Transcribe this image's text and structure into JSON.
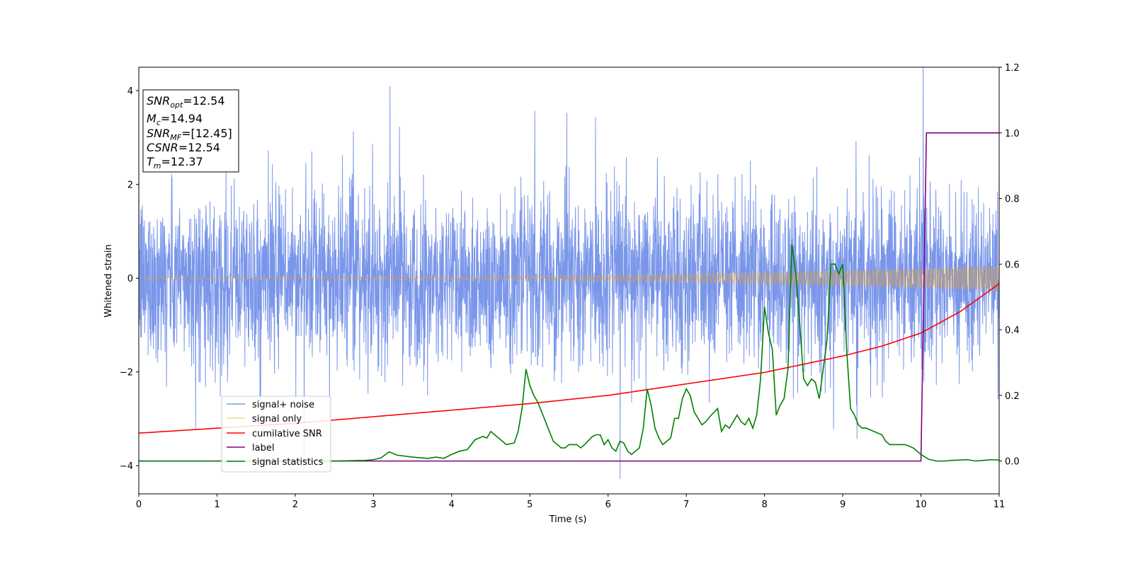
{
  "chart_data": {
    "type": "line",
    "xlabel": "Time (s)",
    "ylabel": "Whitened strain",
    "xlim": [
      0,
      11
    ],
    "ylim_left": [
      -4.6,
      4.5
    ],
    "ylim_right": [
      -0.1,
      1.2
    ],
    "x_ticks": [
      "0",
      "1",
      "2",
      "3",
      "4",
      "5",
      "6",
      "7",
      "8",
      "9",
      "10",
      "11"
    ],
    "y_left_ticks": [
      "−4",
      "−2",
      "0",
      "2",
      "4"
    ],
    "y_right_ticks": [
      "0.0",
      "0.2",
      "0.4",
      "0.6",
      "0.8",
      "1.0",
      "1.2"
    ],
    "grid": false,
    "legend_position": "lower-left",
    "info_box": {
      "snr_opt": {
        "main": "SNR",
        "sub": "opt",
        "rest": "=12.54"
      },
      "mc": {
        "main": "M",
        "sub": "c",
        "rest": "=14.94"
      },
      "snr_mf": {
        "main": "SNR",
        "sub": "MF",
        "rest": "=[12.45]"
      },
      "csnr": {
        "main": "CSNR",
        "rest": "=12.54"
      },
      "tm": {
        "main": "T",
        "sub": "m",
        "rest": "=12.37"
      }
    },
    "series": [
      {
        "name": "signal+ noise",
        "axis": "left",
        "color": "#4169e1",
        "description_hidden": false,
        "noise_sigma": 0.9,
        "x_range": [
          0,
          11
        ]
      },
      {
        "name": "signal only",
        "axis": "left",
        "color": "#ffa500",
        "amplitude_start": 0.03,
        "amplitude_end": 0.27,
        "x_range": [
          0,
          11
        ]
      },
      {
        "name": "cumilative SNR",
        "axis": "right",
        "color": "#ff0000",
        "x": [
          0,
          1,
          2,
          3,
          4,
          5,
          6,
          7,
          8,
          9,
          9.5,
          10,
          10.5,
          11
        ],
        "y": [
          0.085,
          0.1,
          0.115,
          0.135,
          0.155,
          0.175,
          0.2,
          0.235,
          0.27,
          0.32,
          0.35,
          0.39,
          0.455,
          0.54
        ]
      },
      {
        "name": "label",
        "axis": "right",
        "color": "#800080",
        "x": [
          0,
          10.0,
          10.07,
          11
        ],
        "y": [
          0,
          0,
          1,
          1
        ]
      },
      {
        "name": "signal statistics",
        "axis": "right",
        "color": "#008000",
        "x": [
          0,
          1,
          2,
          2.5,
          2.9,
          3.0,
          3.1,
          3.2,
          3.3,
          3.5,
          3.7,
          3.8,
          3.9,
          4.0,
          4.1,
          4.2,
          4.3,
          4.4,
          4.45,
          4.5,
          4.6,
          4.7,
          4.8,
          4.85,
          4.9,
          4.95,
          5.0,
          5.05,
          5.1,
          5.2,
          5.3,
          5.4,
          5.45,
          5.5,
          5.6,
          5.65,
          5.7,
          5.8,
          5.85,
          5.9,
          5.95,
          6.0,
          6.05,
          6.1,
          6.15,
          6.2,
          6.25,
          6.3,
          6.4,
          6.45,
          6.5,
          6.55,
          6.6,
          6.65,
          6.7,
          6.8,
          6.85,
          6.9,
          6.95,
          7.0,
          7.05,
          7.1,
          7.2,
          7.25,
          7.3,
          7.4,
          7.45,
          7.5,
          7.55,
          7.6,
          7.65,
          7.7,
          7.75,
          7.8,
          7.85,
          7.9,
          7.95,
          8.0,
          8.05,
          8.1,
          8.15,
          8.2,
          8.25,
          8.3,
          8.35,
          8.4,
          8.45,
          8.5,
          8.55,
          8.6,
          8.65,
          8.7,
          8.75,
          8.8,
          8.85,
          8.9,
          8.95,
          9.0,
          9.05,
          9.1,
          9.15,
          9.2,
          9.25,
          9.3,
          9.4,
          9.5,
          9.55,
          9.6,
          9.65,
          9.7,
          9.8,
          9.9,
          10.0,
          10.1,
          10.2,
          10.3,
          10.4,
          10.5,
          10.6,
          10.7,
          10.8,
          10.9,
          11.0
        ],
        "y": [
          0,
          0,
          0.0,
          0.0,
          0.002,
          0.004,
          0.01,
          0.028,
          0.018,
          0.012,
          0.008,
          0.012,
          0.008,
          0.02,
          0.03,
          0.035,
          0.065,
          0.075,
          0.07,
          0.09,
          0.07,
          0.05,
          0.055,
          0.09,
          0.16,
          0.28,
          0.23,
          0.2,
          0.18,
          0.12,
          0.06,
          0.04,
          0.04,
          0.05,
          0.05,
          0.04,
          0.05,
          0.075,
          0.08,
          0.08,
          0.05,
          0.065,
          0.04,
          0.03,
          0.06,
          0.055,
          0.03,
          0.02,
          0.04,
          0.1,
          0.22,
          0.17,
          0.1,
          0.07,
          0.05,
          0.07,
          0.13,
          0.13,
          0.19,
          0.22,
          0.2,
          0.15,
          0.11,
          0.12,
          0.135,
          0.16,
          0.09,
          0.11,
          0.1,
          0.12,
          0.14,
          0.12,
          0.11,
          0.13,
          0.1,
          0.14,
          0.25,
          0.47,
          0.39,
          0.34,
          0.14,
          0.17,
          0.19,
          0.28,
          0.66,
          0.57,
          0.42,
          0.25,
          0.23,
          0.25,
          0.24,
          0.19,
          0.28,
          0.37,
          0.6,
          0.6,
          0.57,
          0.6,
          0.34,
          0.16,
          0.14,
          0.11,
          0.1,
          0.1,
          0.09,
          0.08,
          0.06,
          0.05,
          0.05,
          0.05,
          0.05,
          0.04,
          0.02,
          0.005,
          0.0,
          0.0,
          0.002,
          0.003,
          0.004,
          0.0,
          0.002,
          0.004,
          0.003
        ]
      }
    ],
    "legend": [
      "signal+ noise",
      "signal only",
      "cumilative SNR",
      "label",
      "signal statistics"
    ]
  }
}
